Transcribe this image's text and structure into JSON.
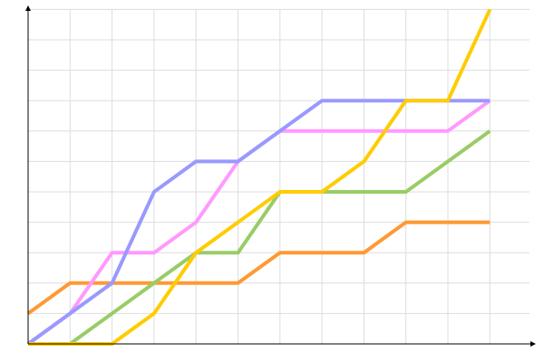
{
  "chart_data": {
    "type": "line",
    "title": "",
    "xlabel": "",
    "ylabel": "",
    "x": [
      0,
      1,
      2,
      3,
      4,
      5,
      6,
      7,
      8,
      9,
      10,
      11
    ],
    "xlim": [
      0,
      12
    ],
    "ylim": [
      0,
      11
    ],
    "grid": true,
    "legend": "none",
    "series": [
      {
        "color": "#ff9933",
        "values": [
          1,
          2,
          2,
          2,
          2,
          2,
          3,
          3,
          3,
          4,
          4,
          4
        ]
      },
      {
        "color": "#99cc66",
        "values": [
          0,
          0,
          1,
          2,
          3,
          3,
          5,
          5,
          5,
          5,
          6,
          7
        ]
      },
      {
        "color": "#ff99ff",
        "values": [
          0,
          1,
          3,
          3,
          4,
          6,
          7,
          7,
          7,
          7,
          7,
          8
        ]
      },
      {
        "color": "#9999ff",
        "values": [
          0,
          1,
          2,
          5,
          6,
          6,
          7,
          8,
          8,
          8,
          8,
          8
        ]
      },
      {
        "color": "#ffcc00",
        "values": [
          0,
          0,
          0,
          1,
          3,
          4,
          5,
          5,
          6,
          8,
          8,
          11
        ]
      }
    ]
  }
}
